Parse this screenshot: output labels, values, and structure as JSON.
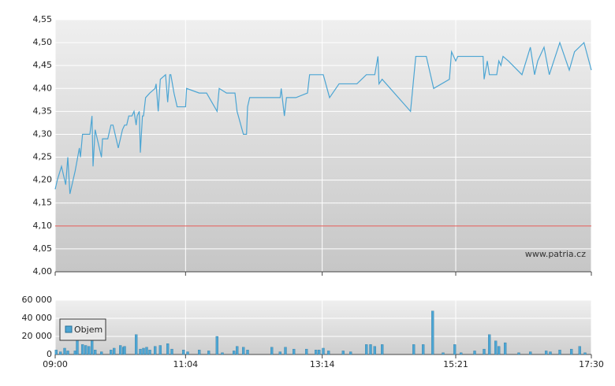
{
  "chart_data": [
    {
      "type": "line",
      "x": [
        "09:00",
        "09:02",
        "09:06",
        "09:10",
        "09:12",
        "09:14",
        "09:19",
        "09:23",
        "09:24",
        "09:26",
        "09:30",
        "09:33",
        "09:35",
        "09:36",
        "09:38",
        "09:42",
        "09:44",
        "09:45",
        "09:50",
        "09:53",
        "09:55",
        "09:58",
        "10:00",
        "10:04",
        "10:06",
        "10:08",
        "10:10",
        "10:13",
        "10:15",
        "10:17",
        "10:18",
        "10:20",
        "10:21",
        "10:23",
        "10:24",
        "10:26",
        "10:30",
        "10:35",
        "10:36",
        "10:38",
        "10:40",
        "10:45",
        "10:47",
        "10:49",
        "10:50",
        "10:53",
        "10:56",
        "11:04",
        "11:05",
        "11:17",
        "11:24",
        "11:34",
        "11:36",
        "11:43",
        "11:51",
        "11:53",
        "11:59",
        "12:02",
        "12:03",
        "12:05",
        "12:34",
        "12:35",
        "12:38",
        "12:40",
        "12:49",
        "13:00",
        "13:02",
        "13:09",
        "13:11",
        "13:15",
        "13:21",
        "13:30",
        "13:47",
        "13:56",
        "14:04",
        "14:07",
        "14:08",
        "14:11",
        "14:38",
        "14:43",
        "14:53",
        "15:00",
        "15:15",
        "15:17",
        "15:21",
        "15:23",
        "15:39",
        "15:47",
        "15:48",
        "15:51",
        "15:53",
        "15:56",
        "16:00",
        "16:02",
        "16:04",
        "16:06",
        "16:11",
        "16:24",
        "16:32",
        "16:36",
        "16:39",
        "16:45",
        "16:50",
        "17:00",
        "17:09",
        "17:14",
        "17:23",
        "17:30"
      ],
      "values": [
        4.18,
        4.2,
        4.23,
        4.19,
        4.25,
        4.17,
        4.22,
        4.27,
        4.25,
        4.3,
        4.3,
        4.3,
        4.34,
        4.23,
        4.31,
        4.27,
        4.25,
        4.29,
        4.29,
        4.32,
        4.32,
        4.29,
        4.27,
        4.31,
        4.32,
        4.32,
        4.34,
        4.34,
        4.35,
        4.32,
        4.34,
        4.35,
        4.26,
        4.34,
        4.34,
        4.38,
        4.39,
        4.4,
        4.41,
        4.35,
        4.42,
        4.43,
        4.37,
        4.43,
        4.43,
        4.39,
        4.36,
        4.36,
        4.4,
        4.39,
        4.39,
        4.35,
        4.4,
        4.39,
        4.39,
        4.35,
        4.3,
        4.3,
        4.36,
        4.38,
        4.38,
        4.4,
        4.34,
        4.38,
        4.38,
        4.39,
        4.43,
        4.43,
        4.43,
        4.43,
        4.38,
        4.41,
        4.41,
        4.43,
        4.43,
        4.47,
        4.41,
        4.42,
        4.35,
        4.47,
        4.47,
        4.4,
        4.42,
        4.48,
        4.46,
        4.47,
        4.47,
        4.47,
        4.42,
        4.46,
        4.43,
        4.43,
        4.43,
        4.46,
        4.45,
        4.47,
        4.46,
        4.43,
        4.49,
        4.43,
        4.46,
        4.49,
        4.43,
        4.5,
        4.44,
        4.48,
        4.5,
        4.44
      ],
      "color": "#4ca5d3",
      "xlim": [
        "09:00",
        "17:30"
      ],
      "ylim": [
        4.0,
        4.55
      ],
      "yticks": [
        {
          "value": 4.0,
          "label": "4,00"
        },
        {
          "value": 4.05,
          "label": "4,05"
        },
        {
          "value": 4.1,
          "label": "4,10"
        },
        {
          "value": 4.15,
          "label": "4,15"
        },
        {
          "value": 4.2,
          "label": "4,20"
        },
        {
          "value": 4.25,
          "label": "4,25"
        },
        {
          "value": 4.3,
          "label": "4,30"
        },
        {
          "value": 4.35,
          "label": "4,35"
        },
        {
          "value": 4.4,
          "label": "4,40"
        },
        {
          "value": 4.45,
          "label": "4,45"
        },
        {
          "value": 4.5,
          "label": "4,50"
        },
        {
          "value": 4.55,
          "label": "4,55"
        }
      ],
      "reference_line": 4.1,
      "reference_color": "#e0554f",
      "annotation": "www.patria.cz",
      "grid": true
    },
    {
      "type": "bar",
      "x": [
        "09:01",
        "09:05",
        "09:09",
        "09:12",
        "09:19",
        "09:21",
        "09:26",
        "09:29",
        "09:32",
        "09:35",
        "09:38",
        "09:44",
        "09:53",
        "09:56",
        "10:02",
        "10:05",
        "10:06",
        "10:17",
        "10:21",
        "10:24",
        "10:27",
        "10:30",
        "10:35",
        "10:40",
        "10:47",
        "10:51",
        "11:02",
        "11:06",
        "11:17",
        "11:26",
        "11:34",
        "11:39",
        "11:50",
        "11:53",
        "11:59",
        "12:03",
        "12:26",
        "12:34",
        "12:39",
        "12:47",
        "12:59",
        "13:08",
        "13:11",
        "13:15",
        "13:20",
        "13:34",
        "13:41",
        "13:56",
        "14:00",
        "14:04",
        "14:11",
        "14:41",
        "14:50",
        "14:59",
        "15:09",
        "15:20",
        "15:26",
        "15:39",
        "15:48",
        "15:53",
        "15:59",
        "16:02",
        "16:08",
        "16:21",
        "16:32",
        "16:47",
        "16:51",
        "17:00",
        "17:11",
        "17:19",
        "17:24"
      ],
      "series": [
        {
          "name": "Objem",
          "color": "#4ca5d3",
          "values": [
            5000,
            3000,
            7000,
            4000,
            4000,
            22000,
            11000,
            10000,
            9000,
            20000,
            5000,
            3000,
            5000,
            7000,
            10000,
            8000,
            9000,
            22000,
            6000,
            7000,
            8000,
            5000,
            9000,
            10000,
            12000,
            6000,
            5000,
            3000,
            5000,
            4000,
            20000,
            2000,
            4000,
            9000,
            8000,
            5000,
            8000,
            3000,
            8000,
            6000,
            6000,
            5000,
            5000,
            7000,
            4000,
            4000,
            3000,
            11000,
            11000,
            9000,
            11000,
            11000,
            11000,
            48000,
            2000,
            11000,
            2000,
            4000,
            6000,
            22000,
            15000,
            9000,
            13000,
            2000,
            3000,
            4000,
            3000,
            5000,
            6000,
            9000,
            2000
          ]
        }
      ],
      "xlim": [
        "09:00",
        "17:30"
      ],
      "xticks": [
        "09:00",
        "11:04",
        "13:14",
        "15:21",
        "17:30"
      ],
      "ylim": [
        0,
        60000
      ],
      "yticks": [
        0,
        {
          "value": 20000,
          "label": "20 000"
        },
        {
          "value": 40000,
          "label": "40 000"
        },
        {
          "value": 60000,
          "label": "60 000"
        }
      ],
      "legend": "upper-left",
      "grid": true
    }
  ]
}
